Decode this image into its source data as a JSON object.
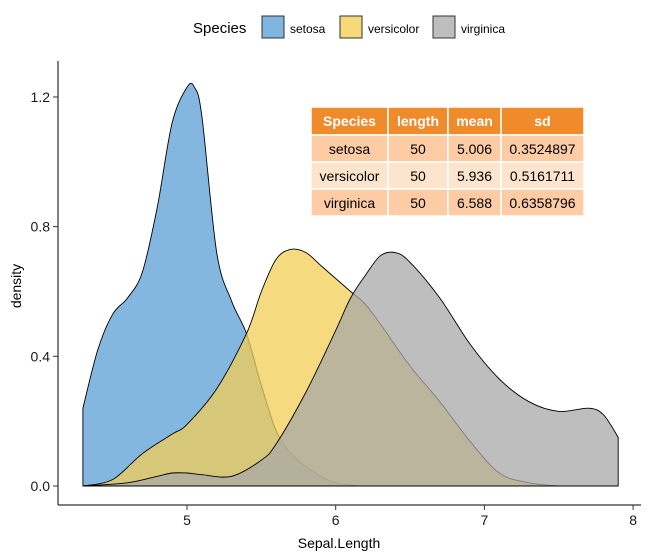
{
  "chart_data": {
    "type": "area",
    "subtype": "density",
    "xlabel": "Sepal.Length",
    "ylabel": "density",
    "xlim": [
      4.0,
      8.1
    ],
    "ylim": [
      0.0,
      1.3
    ],
    "x_ticks": [
      5,
      6,
      7,
      8
    ],
    "y_ticks": [
      0.0,
      0.4,
      0.8,
      1.2
    ],
    "y_tick_labels": [
      "0.0",
      "0.4",
      "0.8",
      "1.2"
    ],
    "grid": false,
    "legend": {
      "title": "Species",
      "placement": "top",
      "entries": [
        {
          "label": "setosa",
          "color": "#7FB5DF"
        },
        {
          "label": "versicolor",
          "color": "#F6DA7A"
        },
        {
          "label": "virginica",
          "color": "#BEBEBE"
        }
      ]
    },
    "series": [
      {
        "name": "setosa",
        "color": "#5A9FD4",
        "opacity": 0.75,
        "x": [
          4.3,
          4.4,
          4.5,
          4.6,
          4.7,
          4.8,
          4.9,
          5.0,
          5.05,
          5.1,
          5.2,
          5.3,
          5.4,
          5.5,
          5.6,
          5.7,
          5.8,
          5.9,
          6.0,
          6.1,
          6.15
        ],
        "y": [
          0.24,
          0.42,
          0.53,
          0.58,
          0.66,
          0.86,
          1.12,
          1.23,
          1.23,
          1.14,
          0.72,
          0.57,
          0.47,
          0.31,
          0.17,
          0.1,
          0.06,
          0.03,
          0.01,
          0.003,
          0.0
        ]
      },
      {
        "name": "versicolor",
        "color": "#F2CE55",
        "opacity": 0.75,
        "x": [
          4.3,
          4.5,
          4.7,
          4.9,
          5.0,
          5.2,
          5.4,
          5.5,
          5.6,
          5.7,
          5.8,
          5.9,
          6.0,
          6.1,
          6.2,
          6.3,
          6.5,
          6.7,
          6.9,
          7.1,
          7.3,
          7.5
        ],
        "y": [
          0.0,
          0.02,
          0.1,
          0.16,
          0.19,
          0.3,
          0.47,
          0.6,
          0.7,
          0.73,
          0.72,
          0.68,
          0.64,
          0.6,
          0.56,
          0.5,
          0.37,
          0.26,
          0.14,
          0.04,
          0.01,
          0.0
        ]
      },
      {
        "name": "virginica",
        "color": "#A8A8A8",
        "opacity": 0.75,
        "x": [
          4.3,
          4.6,
          4.8,
          4.9,
          5.0,
          5.1,
          5.3,
          5.5,
          5.6,
          5.8,
          6.0,
          6.1,
          6.2,
          6.3,
          6.4,
          6.5,
          6.7,
          6.9,
          7.1,
          7.3,
          7.5,
          7.7,
          7.8,
          7.9
        ],
        "y": [
          0.0,
          0.01,
          0.03,
          0.04,
          0.04,
          0.035,
          0.03,
          0.08,
          0.13,
          0.29,
          0.48,
          0.58,
          0.65,
          0.71,
          0.72,
          0.69,
          0.58,
          0.44,
          0.33,
          0.26,
          0.23,
          0.24,
          0.22,
          0.15
        ]
      }
    ],
    "table": {
      "header_color": "#F08B2C",
      "row_colors": [
        "#FDCBA4",
        "#FDE4CC",
        "#FDCBA4"
      ],
      "columns": [
        "Species",
        "length",
        "mean",
        "sd"
      ],
      "rows": [
        [
          "setosa",
          "50",
          "5.006",
          "0.3524897"
        ],
        [
          "versicolor",
          "50",
          "5.936",
          "0.5161711"
        ],
        [
          "virginica",
          "50",
          "6.588",
          "0.6358796"
        ]
      ]
    }
  }
}
